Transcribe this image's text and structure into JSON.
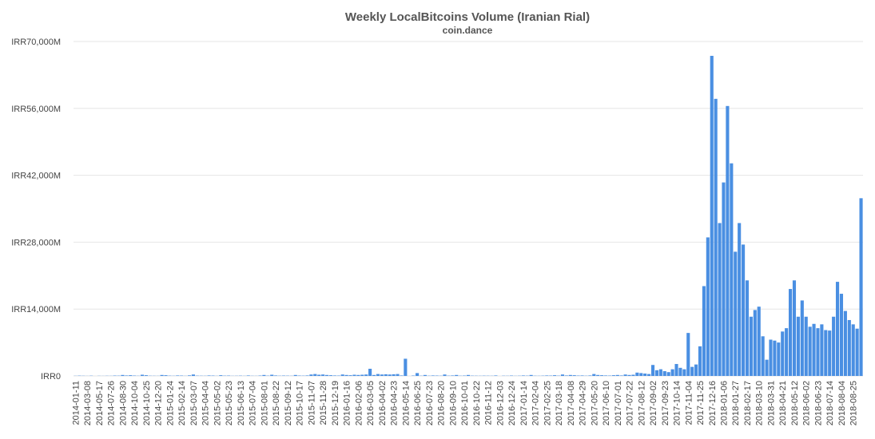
{
  "chart_data": {
    "type": "bar",
    "title": "Weekly LocalBitcoins Volume (Iranian Rial)",
    "subtitle": "coin.dance",
    "categories": [
      "2014-01-11",
      null,
      null,
      "2014-03-08",
      null,
      null,
      "2014-05-17",
      null,
      null,
      "2014-07-26",
      null,
      null,
      "2014-08-30",
      null,
      null,
      "2014-10-04",
      null,
      null,
      "2014-10-25",
      null,
      null,
      "2014-12-20",
      null,
      null,
      "2015-01-24",
      null,
      null,
      "2015-02-14",
      null,
      null,
      "2015-03-07",
      null,
      null,
      "2015-04-04",
      null,
      null,
      "2015-05-02",
      null,
      null,
      "2015-05-23",
      null,
      null,
      "2015-06-13",
      null,
      null,
      "2015-07-04",
      null,
      null,
      "2015-08-01",
      null,
      null,
      "2015-08-22",
      null,
      null,
      "2015-09-12",
      null,
      null,
      "2015-10-17",
      null,
      null,
      "2015-11-07",
      null,
      null,
      "2015-11-28",
      null,
      null,
      "2015-12-19",
      null,
      null,
      "2016-01-16",
      null,
      null,
      "2016-02-06",
      null,
      null,
      "2016-03-05",
      null,
      null,
      "2016-04-02",
      null,
      null,
      "2016-04-23",
      null,
      null,
      "2016-05-14",
      null,
      null,
      "2016-06-25",
      null,
      null,
      "2016-07-23",
      null,
      null,
      "2016-08-20",
      null,
      null,
      "2016-09-10",
      null,
      null,
      "2016-10-01",
      null,
      null,
      "2016-10-22",
      null,
      null,
      "2016-11-12",
      null,
      null,
      "2016-12-03",
      null,
      null,
      "2016-12-24",
      null,
      null,
      "2017-01-14",
      null,
      null,
      "2017-02-04",
      null,
      null,
      "2017-02-25",
      null,
      null,
      "2017-03-18",
      null,
      null,
      "2017-04-08",
      null,
      null,
      "2017-04-29",
      null,
      null,
      "2017-05-20",
      null,
      null,
      "2017-06-10",
      null,
      null,
      "2017-07-01",
      null,
      null,
      "2017-07-22",
      null,
      null,
      "2017-08-12",
      null,
      null,
      "2017-09-02",
      null,
      null,
      "2017-09-23",
      null,
      null,
      "2017-10-14",
      null,
      null,
      "2017-11-04",
      null,
      null,
      "2017-11-25",
      null,
      null,
      "2017-12-16",
      null,
      null,
      "2018-01-06",
      null,
      null,
      "2018-01-27",
      null,
      null,
      "2018-02-17",
      null,
      null,
      "2018-03-10",
      null,
      null,
      "2018-03-31",
      null,
      null,
      "2018-04-21",
      null,
      null,
      "2018-05-12",
      null,
      null,
      "2018-06-02",
      null,
      null,
      "2018-06-23",
      null,
      null,
      "2018-07-14",
      null,
      null,
      "2018-08-04",
      null,
      null,
      "2018-08-25",
      null,
      null
    ],
    "values": [
      30,
      60,
      40,
      20,
      50,
      0,
      30,
      20,
      40,
      30,
      80,
      60,
      200,
      100,
      150,
      80,
      40,
      250,
      150,
      50,
      40,
      30,
      200,
      150,
      60,
      40,
      100,
      80,
      30,
      120,
      300,
      60,
      50,
      40,
      100,
      80,
      30,
      150,
      60,
      80,
      30,
      40,
      60,
      30,
      100,
      40,
      30,
      80,
      200,
      60,
      250,
      100,
      50,
      80,
      60,
      40,
      200,
      80,
      60,
      100,
      300,
      400,
      250,
      300,
      200,
      150,
      100,
      80,
      300,
      200,
      150,
      250,
      200,
      250,
      300,
      1500,
      200,
      400,
      300,
      350,
      300,
      350,
      400,
      100,
      3600,
      0,
      80,
      600,
      50,
      200,
      50,
      100,
      80,
      50,
      300,
      60,
      100,
      200,
      50,
      80,
      200,
      60,
      50,
      40,
      60,
      50,
      40,
      100,
      0,
      50,
      40,
      80,
      30,
      50,
      100,
      60,
      200,
      50,
      40,
      60,
      100,
      80,
      150,
      60,
      300,
      100,
      200,
      150,
      80,
      100,
      50,
      100,
      400,
      200,
      150,
      100,
      80,
      150,
      200,
      100,
      300,
      200,
      250,
      700,
      600,
      500,
      400,
      2300,
      1200,
      1400,
      1000,
      800,
      1400,
      2500,
      1700,
      1400,
      9000,
      1900,
      2400,
      6200,
      18800,
      29000,
      67000,
      58000,
      32000,
      40500,
      56500,
      44500,
      26000,
      32000,
      27500,
      20000,
      12400,
      13800,
      14500,
      8300,
      3400,
      7600,
      7400,
      7000,
      9300,
      10000,
      18200,
      20000,
      12400,
      15800,
      12400,
      10300,
      10900,
      10000,
      10800,
      9600,
      9500,
      12400,
      19700,
      17200,
      13600,
      11700,
      10800,
      9900,
      37200
    ],
    "color": "#4a8fe2",
    "ylim": [
      0,
      70000
    ],
    "yticks": [
      {
        "value": 0,
        "label": "IRR0"
      },
      {
        "value": 14000,
        "label": "IRR14,000M"
      },
      {
        "value": 28000,
        "label": "IRR28,000M"
      },
      {
        "value": 42000,
        "label": "IRR42,000M"
      },
      {
        "value": 56000,
        "label": "IRR56,000M"
      },
      {
        "value": 70000,
        "label": "IRR70,000M"
      }
    ],
    "grid": true
  }
}
